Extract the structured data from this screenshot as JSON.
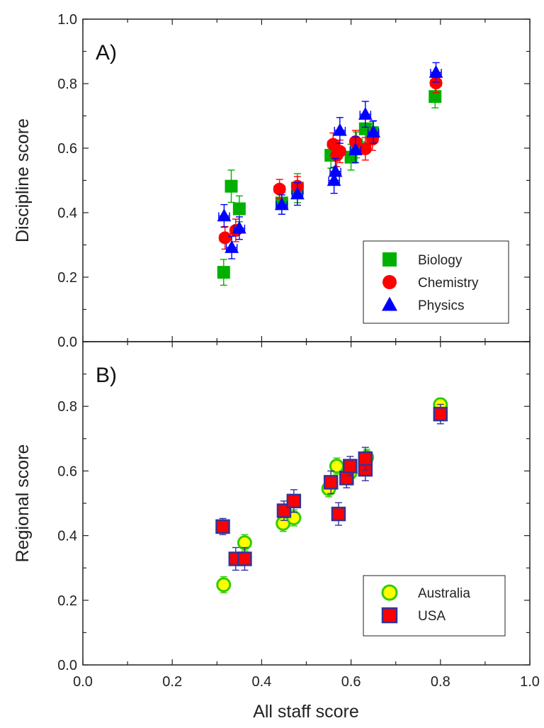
{
  "chart_data": [
    {
      "type": "scatter",
      "panel_label": "A)",
      "xlabel": "All staff score",
      "ylabel": "Discipline score",
      "xlim": [
        0.0,
        1.0
      ],
      "ylim": [
        0.0,
        1.0
      ],
      "x_ticks": [
        "0.0",
        "0.2",
        "0.4",
        "0.6",
        "0.8",
        "1.0"
      ],
      "y_ticks": [
        "0.0",
        "0.2",
        "0.4",
        "0.6",
        "0.8",
        "1.0"
      ],
      "legend_position": "bottom-right",
      "series": [
        {
          "name": "Biology",
          "marker": "square",
          "color": "#00b000",
          "error_color": "#00b000",
          "points": [
            {
              "x": 0.315,
              "y": 0.215,
              "xerr": 0.012,
              "yerr": 0.04
            },
            {
              "x": 0.332,
              "y": 0.482,
              "xerr": 0.012,
              "yerr": 0.05
            },
            {
              "x": 0.35,
              "y": 0.412,
              "xerr": 0.012,
              "yerr": 0.04
            },
            {
              "x": 0.445,
              "y": 0.43,
              "xerr": 0.012,
              "yerr": 0.035
            },
            {
              "x": 0.48,
              "y": 0.476,
              "xerr": 0.012,
              "yerr": 0.045
            },
            {
              "x": 0.555,
              "y": 0.578,
              "xerr": 0.012,
              "yerr": 0.04
            },
            {
              "x": 0.6,
              "y": 0.572,
              "xerr": 0.012,
              "yerr": 0.04
            },
            {
              "x": 0.612,
              "y": 0.61,
              "xerr": 0.012,
              "yerr": 0.04
            },
            {
              "x": 0.632,
              "y": 0.66,
              "xerr": 0.012,
              "yerr": 0.04
            },
            {
              "x": 0.648,
              "y": 0.648,
              "xerr": 0.012,
              "yerr": 0.035
            },
            {
              "x": 0.788,
              "y": 0.76,
              "xerr": 0.012,
              "yerr": 0.035
            }
          ]
        },
        {
          "name": "Chemistry",
          "marker": "circle",
          "color": "#ff0000",
          "error_color": "#ff0000",
          "points": [
            {
              "x": 0.318,
              "y": 0.322,
              "xerr": 0.012,
              "yerr": 0.035
            },
            {
              "x": 0.342,
              "y": 0.345,
              "xerr": 0.012,
              "yerr": 0.035
            },
            {
              "x": 0.44,
              "y": 0.473,
              "xerr": 0.012,
              "yerr": 0.03
            },
            {
              "x": 0.48,
              "y": 0.482,
              "xerr": 0.012,
              "yerr": 0.03
            },
            {
              "x": 0.56,
              "y": 0.612,
              "xerr": 0.012,
              "yerr": 0.035
            },
            {
              "x": 0.568,
              "y": 0.578,
              "xerr": 0.012,
              "yerr": 0.035
            },
            {
              "x": 0.575,
              "y": 0.59,
              "xerr": 0.012,
              "yerr": 0.035
            },
            {
              "x": 0.61,
              "y": 0.62,
              "xerr": 0.012,
              "yerr": 0.035
            },
            {
              "x": 0.632,
              "y": 0.598,
              "xerr": 0.012,
              "yerr": 0.035
            },
            {
              "x": 0.648,
              "y": 0.628,
              "xerr": 0.012,
              "yerr": 0.035
            },
            {
              "x": 0.79,
              "y": 0.802,
              "xerr": 0.012,
              "yerr": 0.03
            }
          ]
        },
        {
          "name": "Physics",
          "marker": "triangle",
          "color": "#0000ff",
          "error_color": "#0000ff",
          "points": [
            {
              "x": 0.316,
              "y": 0.39,
              "xerr": 0.012,
              "yerr": 0.035
            },
            {
              "x": 0.333,
              "y": 0.292,
              "xerr": 0.012,
              "yerr": 0.035
            },
            {
              "x": 0.35,
              "y": 0.352,
              "xerr": 0.012,
              "yerr": 0.035
            },
            {
              "x": 0.445,
              "y": 0.425,
              "xerr": 0.012,
              "yerr": 0.03
            },
            {
              "x": 0.48,
              "y": 0.458,
              "xerr": 0.012,
              "yerr": 0.035
            },
            {
              "x": 0.562,
              "y": 0.5,
              "xerr": 0.012,
              "yerr": 0.04
            },
            {
              "x": 0.565,
              "y": 0.528,
              "xerr": 0.012,
              "yerr": 0.04
            },
            {
              "x": 0.575,
              "y": 0.655,
              "xerr": 0.012,
              "yerr": 0.04
            },
            {
              "x": 0.61,
              "y": 0.595,
              "xerr": 0.012,
              "yerr": 0.04
            },
            {
              "x": 0.632,
              "y": 0.705,
              "xerr": 0.012,
              "yerr": 0.04
            },
            {
              "x": 0.65,
              "y": 0.65,
              "xerr": 0.012,
              "yerr": 0.035
            },
            {
              "x": 0.79,
              "y": 0.835,
              "xerr": 0.012,
              "yerr": 0.03
            }
          ]
        }
      ]
    },
    {
      "type": "scatter",
      "panel_label": "B)",
      "xlabel": "All staff score",
      "ylabel": "Regional score",
      "xlim": [
        0.0,
        1.0
      ],
      "ylim": [
        0.0,
        1.0
      ],
      "x_ticks": [
        "0.0",
        "0.2",
        "0.4",
        "0.6",
        "0.8",
        "1.0"
      ],
      "y_ticks": [
        "0.0",
        "0.2",
        "0.4",
        "0.6",
        "0.8"
      ],
      "legend_position": "bottom-right",
      "series": [
        {
          "name": "Australia",
          "marker": "circle",
          "color": "#ffff00",
          "edge_color": "#33cc00",
          "error_color": "#33cc00",
          "points": [
            {
              "x": 0.315,
              "y": 0.248,
              "xerr": 0.012,
              "yerr": 0.025
            },
            {
              "x": 0.362,
              "y": 0.378,
              "xerr": 0.012,
              "yerr": 0.025
            },
            {
              "x": 0.448,
              "y": 0.438,
              "xerr": 0.012,
              "yerr": 0.025
            },
            {
              "x": 0.472,
              "y": 0.455,
              "xerr": 0.012,
              "yerr": 0.025
            },
            {
              "x": 0.55,
              "y": 0.545,
              "xerr": 0.012,
              "yerr": 0.025
            },
            {
              "x": 0.568,
              "y": 0.615,
              "xerr": 0.012,
              "yerr": 0.025
            },
            {
              "x": 0.598,
              "y": 0.595,
              "xerr": 0.012,
              "yerr": 0.025
            },
            {
              "x": 0.635,
              "y": 0.642,
              "xerr": 0.012,
              "yerr": 0.025
            },
            {
              "x": 0.8,
              "y": 0.805,
              "xerr": 0.012,
              "yerr": 0.02
            }
          ]
        },
        {
          "name": "USA",
          "marker": "square",
          "color": "#ff0000",
          "edge_color": "#333399",
          "error_color": "#333399",
          "points": [
            {
              "x": 0.313,
              "y": 0.428,
              "xerr": 0.012,
              "yerr": 0.025
            },
            {
              "x": 0.342,
              "y": 0.328,
              "xerr": 0.012,
              "yerr": 0.035
            },
            {
              "x": 0.362,
              "y": 0.328,
              "xerr": 0.012,
              "yerr": 0.035
            },
            {
              "x": 0.45,
              "y": 0.477,
              "xerr": 0.012,
              "yerr": 0.03
            },
            {
              "x": 0.472,
              "y": 0.507,
              "xerr": 0.012,
              "yerr": 0.035
            },
            {
              "x": 0.555,
              "y": 0.565,
              "xerr": 0.012,
              "yerr": 0.035
            },
            {
              "x": 0.572,
              "y": 0.467,
              "xerr": 0.012,
              "yerr": 0.035
            },
            {
              "x": 0.59,
              "y": 0.578,
              "xerr": 0.012,
              "yerr": 0.03
            },
            {
              "x": 0.598,
              "y": 0.615,
              "xerr": 0.012,
              "yerr": 0.03
            },
            {
              "x": 0.632,
              "y": 0.605,
              "xerr": 0.012,
              "yerr": 0.035
            },
            {
              "x": 0.632,
              "y": 0.638,
              "xerr": 0.012,
              "yerr": 0.035
            },
            {
              "x": 0.8,
              "y": 0.776,
              "xerr": 0.012,
              "yerr": 0.03
            }
          ]
        }
      ]
    }
  ]
}
